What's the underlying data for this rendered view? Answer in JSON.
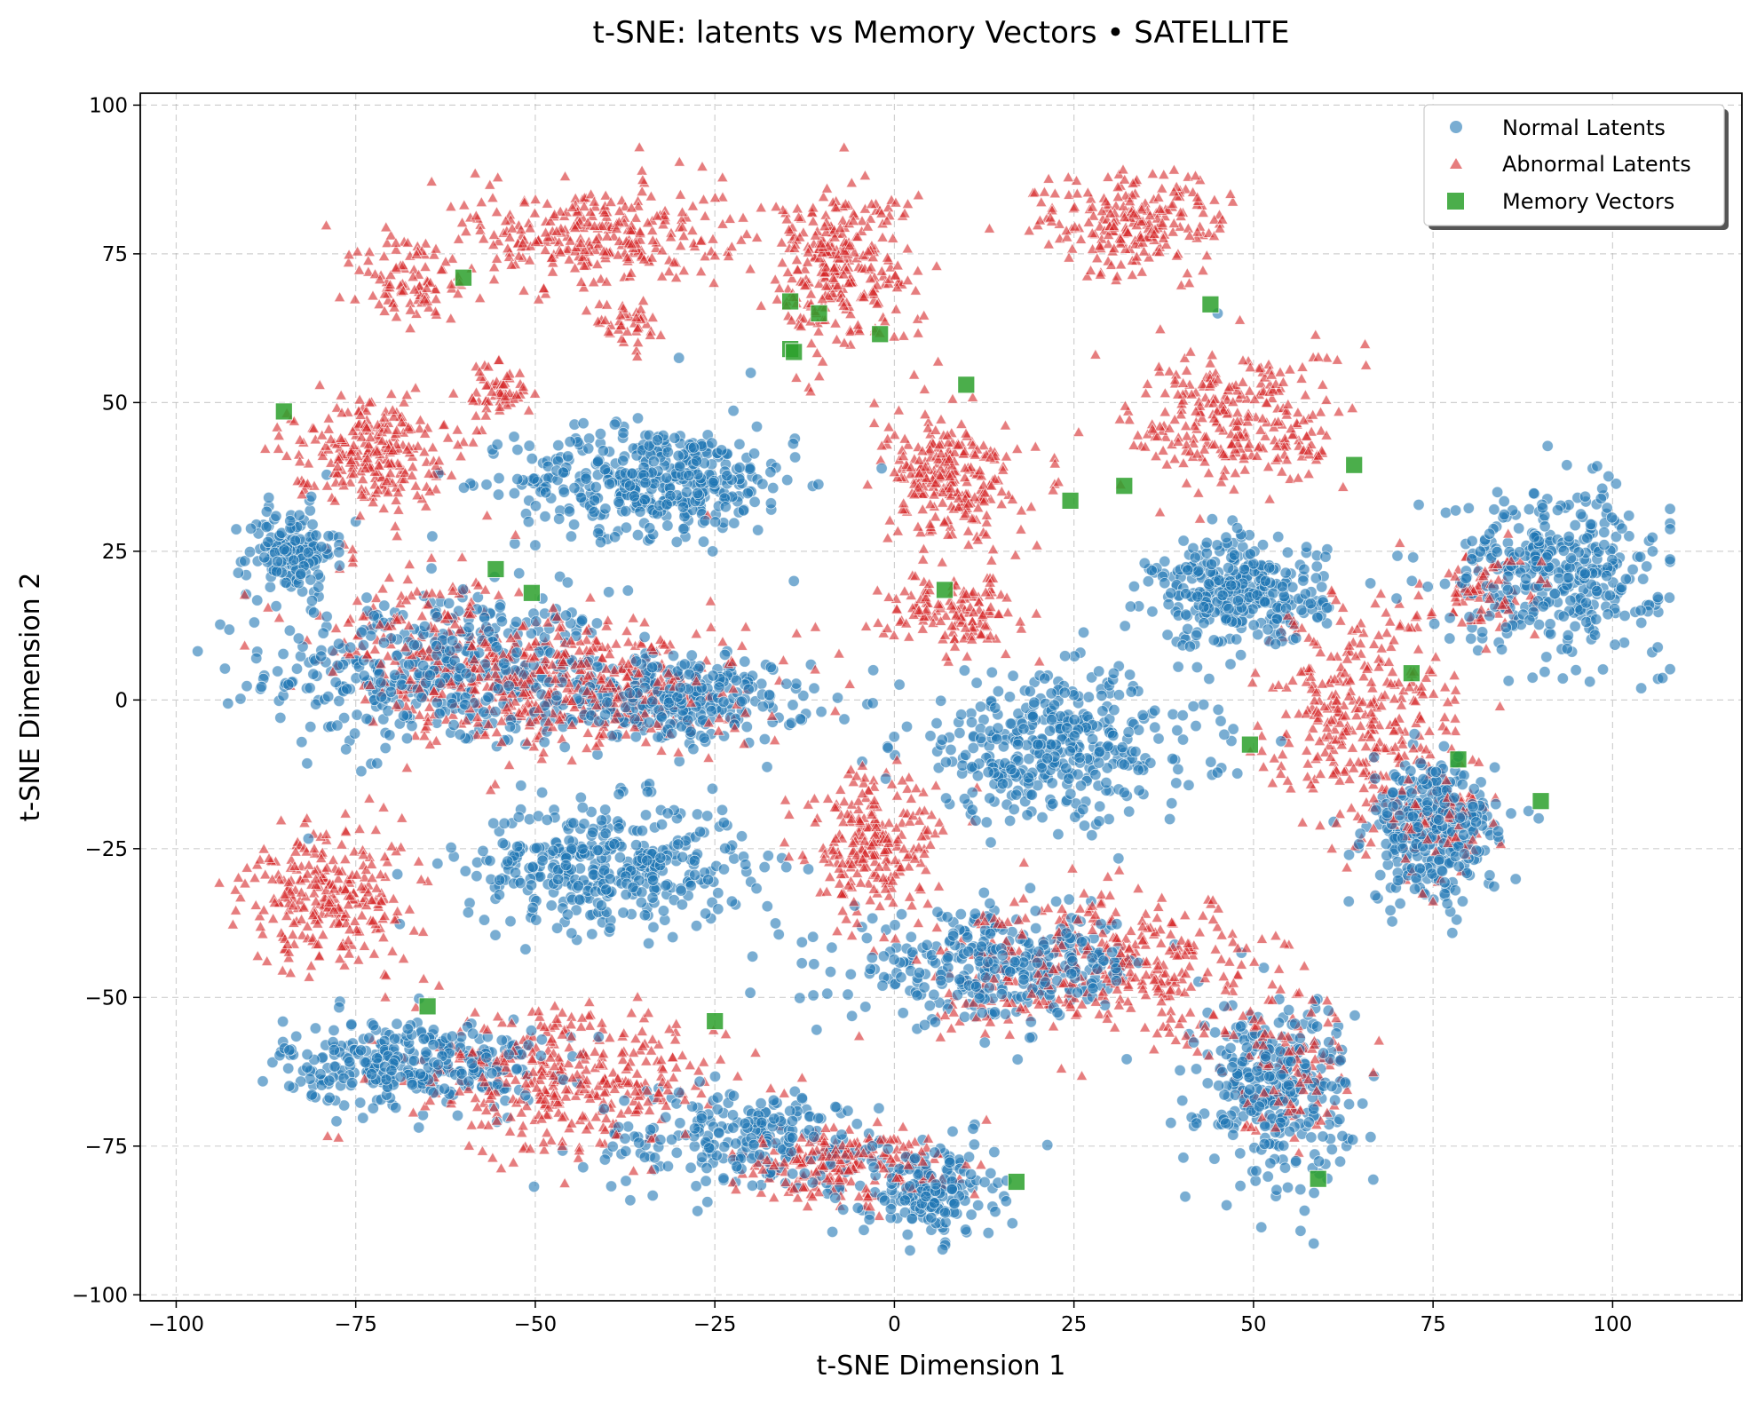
{
  "chart_data": {
    "type": "scatter",
    "title": "t-SNE: latents vs Memory Vectors • SATELLITE",
    "xlabel": "t-SNE Dimension 1",
    "ylabel": "t-SNE Dimension 2",
    "xlim": [
      -105,
      118
    ],
    "ylim": [
      -101,
      102
    ],
    "xticks": [
      -100,
      -75,
      -50,
      -25,
      0,
      25,
      50,
      75,
      100
    ],
    "yticks": [
      -100,
      -75,
      -50,
      -25,
      0,
      25,
      50,
      75,
      100
    ],
    "xtick_labels": [
      "−100",
      "−75",
      "−50",
      "−25",
      "0",
      "25",
      "50",
      "75",
      "100"
    ],
    "ytick_labels": [
      "−100",
      "−75",
      "−50",
      "−25",
      "0",
      "25",
      "50",
      "75",
      "100"
    ],
    "grid": true,
    "legend_position": "top-right",
    "colors": {
      "normal": "#1f77b4",
      "abnormal": "#d62728",
      "memory": "#2ca02c"
    },
    "series": [
      {
        "name": "Normal Latents",
        "marker": "circle",
        "clusters": [
          {
            "cx": -63,
            "cy": 5,
            "sx": 16,
            "sy": 9,
            "n": 450
          },
          {
            "cx": -30,
            "cy": 0,
            "sx": 12,
            "sy": 5,
            "n": 300
          },
          {
            "cx": -84,
            "cy": 25,
            "sx": 4,
            "sy": 5,
            "n": 150
          },
          {
            "cx": -33,
            "cy": 37,
            "sx": 13,
            "sy": 6,
            "n": 420
          },
          {
            "cx": -40,
            "cy": -28,
            "sx": 13,
            "sy": 7,
            "n": 400
          },
          {
            "cx": -67,
            "cy": -61,
            "sx": 12,
            "sy": 5,
            "n": 320
          },
          {
            "cx": -20,
            "cy": -74,
            "sx": 15,
            "sy": 6,
            "n": 250
          },
          {
            "cx": 5,
            "cy": -83,
            "sx": 6,
            "sy": 5,
            "n": 180
          },
          {
            "cx": 22,
            "cy": -8,
            "sx": 14,
            "sy": 8,
            "n": 400
          },
          {
            "cx": 15,
            "cy": -45,
            "sx": 14,
            "sy": 6,
            "n": 360
          },
          {
            "cx": 53,
            "cy": -65,
            "sx": 7,
            "sy": 10,
            "n": 320
          },
          {
            "cx": 48,
            "cy": 18,
            "sx": 8,
            "sy": 6,
            "n": 320
          },
          {
            "cx": 75,
            "cy": -22,
            "sx": 6,
            "sy": 8,
            "n": 330
          },
          {
            "cx": 92,
            "cy": 22,
            "sx": 10,
            "sy": 9,
            "n": 380
          }
        ],
        "points": [
          [
            -45,
            27.5
          ],
          [
            -30,
            57.5
          ],
          [
            -75,
            30
          ],
          [
            -14,
            20
          ],
          [
            45,
            65
          ],
          [
            -20,
            55
          ]
        ]
      },
      {
        "name": "Abnormal Latents",
        "marker": "triangle",
        "clusters": [
          {
            "cx": -42,
            "cy": 78,
            "sx": 12,
            "sy": 6,
            "n": 300
          },
          {
            "cx": -67,
            "cy": 70,
            "sx": 5,
            "sy": 6,
            "n": 90
          },
          {
            "cx": -37,
            "cy": 63,
            "sx": 3,
            "sy": 3,
            "n": 40
          },
          {
            "cx": -55,
            "cy": 52,
            "sx": 3,
            "sy": 3,
            "n": 60
          },
          {
            "cx": -73,
            "cy": 42,
            "sx": 7,
            "sy": 6,
            "n": 250
          },
          {
            "cx": -8,
            "cy": 73,
            "sx": 7,
            "sy": 9,
            "n": 300
          },
          {
            "cx": 33,
            "cy": 80,
            "sx": 9,
            "sy": 6,
            "n": 220
          },
          {
            "cx": 48,
            "cy": 47,
            "sx": 10,
            "sy": 8,
            "n": 280
          },
          {
            "cx": 8,
            "cy": 37,
            "sx": 6,
            "sy": 7,
            "n": 260
          },
          {
            "cx": 8,
            "cy": 15,
            "sx": 6,
            "sy": 4,
            "n": 140
          },
          {
            "cx": -45,
            "cy": 2,
            "sx": 16,
            "sy": 7,
            "n": 500
          },
          {
            "cx": -65,
            "cy": 12,
            "sx": 12,
            "sy": 8,
            "n": 160
          },
          {
            "cx": -78,
            "cy": -33,
            "sx": 8,
            "sy": 8,
            "n": 280
          },
          {
            "cx": -45,
            "cy": -64,
            "sx": 14,
            "sy": 8,
            "n": 380
          },
          {
            "cx": -8,
            "cy": -78,
            "sx": 10,
            "sy": 4,
            "n": 220
          },
          {
            "cx": -3,
            "cy": -25,
            "sx": 6,
            "sy": 8,
            "n": 230
          },
          {
            "cx": 30,
            "cy": -45,
            "sx": 16,
            "sy": 8,
            "n": 380
          },
          {
            "cx": 55,
            "cy": -60,
            "sx": 6,
            "sy": 8,
            "n": 120
          },
          {
            "cx": 65,
            "cy": -3,
            "sx": 9,
            "sy": 12,
            "n": 320
          },
          {
            "cx": 75,
            "cy": -20,
            "sx": 5,
            "sy": 6,
            "n": 100
          },
          {
            "cx": 83,
            "cy": 18,
            "sx": 5,
            "sy": 5,
            "n": 80
          }
        ],
        "points": [
          [
            28,
            58
          ],
          [
            -66,
            47
          ],
          [
            -26,
            31
          ]
        ]
      },
      {
        "name": "Memory Vectors",
        "marker": "square",
        "points": [
          [
            -60,
            71
          ],
          [
            -14.5,
            67
          ],
          [
            -10.5,
            65
          ],
          [
            -14.5,
            59
          ],
          [
            -14,
            58.5
          ],
          [
            -2,
            61.5
          ],
          [
            44,
            66.5
          ],
          [
            -85,
            48.5
          ],
          [
            10,
            53
          ],
          [
            64,
            39.5
          ],
          [
            24.5,
            33.5
          ],
          [
            32,
            36
          ],
          [
            -55.5,
            22
          ],
          [
            -50.5,
            18
          ],
          [
            7,
            18.5
          ],
          [
            72,
            4.5
          ],
          [
            49.5,
            -7.5
          ],
          [
            78.5,
            -10
          ],
          [
            90,
            -17
          ],
          [
            -65,
            -51.5
          ],
          [
            -25,
            -54
          ],
          [
            17,
            -81
          ],
          [
            59,
            -80.5
          ]
        ]
      }
    ]
  }
}
